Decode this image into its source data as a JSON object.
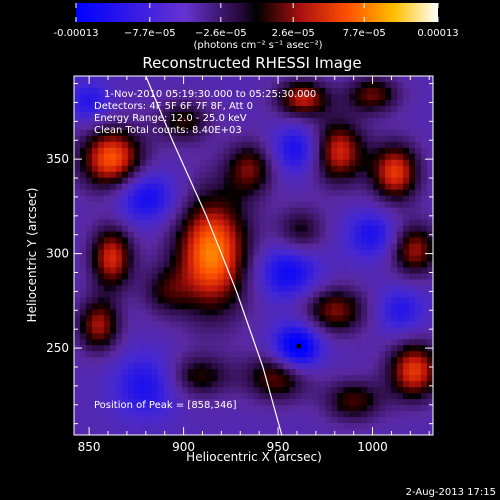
{
  "chart_data": {
    "type": "heatmap",
    "title": "Reconstructed RHESSI Image",
    "xlabel": "Heliocentric X (arcsec)",
    "ylabel": "Heliocentric Y (arcsec)",
    "xlim": [
      842,
      1032
    ],
    "ylim": [
      204,
      394
    ],
    "x_ticks": [
      850,
      900,
      950,
      1000
    ],
    "y_ticks": [
      250,
      300,
      350
    ],
    "x_tick_labels": [
      "850",
      "900",
      "950",
      "1000"
    ],
    "y_tick_labels": [
      "250",
      "300",
      "350"
    ],
    "colorbar": {
      "min": -0.00013,
      "max": 0.00013,
      "tick_labels": [
        "-0.00013",
        "−7.7e−05",
        "−2.6e−05",
        "2.6e−05",
        "7.7e−05",
        "0.00013"
      ],
      "tick_values": [
        -0.00013,
        -7.7e-05,
        -2.6e-05,
        2.6e-05,
        7.7e-05,
        0.00013
      ],
      "units_label": "(photons cm⁻² s⁻¹ asec⁻²)"
    },
    "annotations": [
      "1-Nov-2010 05:19:30.000 to 05:25:30.000",
      "Detectors: 4F 5F 6F 7F 8F, Att 0",
      "Energy Range: 12.0 - 25.0 keV",
      "Clean     Total counts: 8.40E+03"
    ],
    "peak_label": "Position of Peak = [858,346]",
    "peak_marker": {
      "x": 961,
      "y": 251
    },
    "limb_points": [
      [
        880,
        394
      ],
      [
        894,
        360
      ],
      [
        912,
        320
      ],
      [
        928,
        280
      ],
      [
        942,
        240
      ],
      [
        952,
        204
      ]
    ],
    "sources": [
      {
        "x": 915,
        "y": 300,
        "amp": 1.0,
        "sx": 14,
        "sy": 22
      },
      {
        "x": 862,
        "y": 350,
        "amp": 0.9,
        "sx": 12,
        "sy": 12
      },
      {
        "x": 982,
        "y": 354,
        "amp": 0.75,
        "sx": 10,
        "sy": 12
      },
      {
        "x": 963,
        "y": 382,
        "amp": 0.7,
        "sx": 10,
        "sy": 7
      },
      {
        "x": 1012,
        "y": 343,
        "amp": 0.8,
        "sx": 9,
        "sy": 11
      },
      {
        "x": 1022,
        "y": 238,
        "amp": 0.8,
        "sx": 10,
        "sy": 11
      },
      {
        "x": 1022,
        "y": 302,
        "amp": 0.65,
        "sx": 9,
        "sy": 10
      },
      {
        "x": 980,
        "y": 270,
        "amp": 0.6,
        "sx": 12,
        "sy": 9
      },
      {
        "x": 950,
        "y": 235,
        "amp": 0.6,
        "sx": 12,
        "sy": 9
      },
      {
        "x": 862,
        "y": 298,
        "amp": 0.75,
        "sx": 8,
        "sy": 12
      },
      {
        "x": 855,
        "y": 262,
        "amp": 0.65,
        "sx": 8,
        "sy": 10
      },
      {
        "x": 935,
        "y": 345,
        "amp": 0.55,
        "sx": 9,
        "sy": 10
      },
      {
        "x": 900,
        "y": 370,
        "amp": 0.45,
        "sx": 10,
        "sy": 8
      },
      {
        "x": 908,
        "y": 235,
        "amp": 0.45,
        "sx": 12,
        "sy": 8
      },
      {
        "x": 990,
        "y": 222,
        "amp": 0.5,
        "sx": 11,
        "sy": 8
      },
      {
        "x": 1000,
        "y": 384,
        "amp": 0.55,
        "sx": 10,
        "sy": 7
      },
      {
        "x": 962,
        "y": 312,
        "amp": 0.4,
        "sx": 9,
        "sy": 9
      },
      {
        "x": 890,
        "y": 280,
        "amp": 0.35,
        "sx": 9,
        "sy": 9
      },
      {
        "x": 960,
        "y": 250,
        "amp": -0.8,
        "sx": 9,
        "sy": 9
      },
      {
        "x": 880,
        "y": 330,
        "amp": -0.55,
        "sx": 12,
        "sy": 10
      },
      {
        "x": 955,
        "y": 290,
        "amp": -0.55,
        "sx": 12,
        "sy": 10
      },
      {
        "x": 1000,
        "y": 310,
        "amp": -0.45,
        "sx": 10,
        "sy": 9
      },
      {
        "x": 880,
        "y": 230,
        "amp": -0.45,
        "sx": 12,
        "sy": 12
      },
      {
        "x": 960,
        "y": 355,
        "amp": -0.5,
        "sx": 9,
        "sy": 9
      },
      {
        "x": 1015,
        "y": 270,
        "amp": -0.4,
        "sx": 9,
        "sy": 9
      },
      {
        "x": 850,
        "y": 380,
        "amp": -0.4,
        "sx": 8,
        "sy": 8
      }
    ]
  },
  "footer": {
    "timestamp": "2-Aug-2013 17:15"
  }
}
